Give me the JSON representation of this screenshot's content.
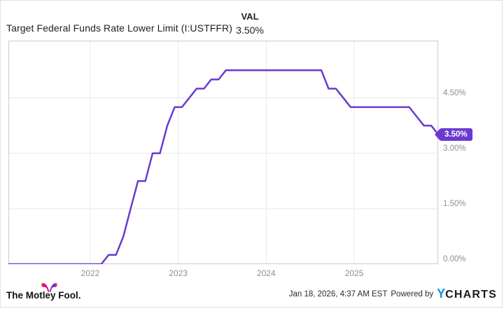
{
  "header": {
    "title": "Target Federal Funds Rate Lower Limit (I:USTFFR)",
    "val_label": "VAL",
    "val_value": "3.50%"
  },
  "footer": {
    "brand": "The Motley Fool.",
    "timestamp": "Jan 18, 2026, 4:37 AM EST",
    "powered_by": "Powered by",
    "ycharts_y": "Y",
    "ycharts_rest": "CHARTS"
  },
  "colors": {
    "line": "#6A3AD0",
    "grid": "#e8e8e8",
    "frame": "#cccccc",
    "tick_text": "#8f8f8f",
    "ycharts_blue": "#1590DB",
    "fool_pink": "#E6007E",
    "fool_purple": "#7C2BC9",
    "fool_gold": "#F7A11A"
  },
  "chart_data": {
    "type": "line",
    "title": "Target Federal Funds Rate Lower Limit (I:USTFFR)",
    "xlabel": "",
    "ylabel": "",
    "unit": "percent",
    "grid": true,
    "legend_position": "none",
    "x_start_month": "2021-01",
    "x_step": "monthly",
    "values": [
      0,
      0,
      0,
      0,
      0,
      0,
      0,
      0,
      0,
      0,
      0,
      0,
      0,
      0,
      0.25,
      0.25,
      0.75,
      1.5,
      2.25,
      2.25,
      3,
      3,
      3.75,
      4.25,
      4.25,
      4.5,
      4.75,
      4.75,
      5,
      5,
      5.25,
      5.25,
      5.25,
      5.25,
      5.25,
      5.25,
      5.25,
      5.25,
      5.25,
      5.25,
      5.25,
      5.25,
      5.25,
      5.25,
      4.75,
      4.75,
      4.5,
      4.25,
      4.25,
      4.25,
      4.25,
      4.25,
      4.25,
      4.25,
      4.25,
      4.25,
      4,
      3.75,
      3.75,
      3.5
    ],
    "x_ticks": [
      {
        "label": "2022",
        "year": 2022
      },
      {
        "label": "2023",
        "year": 2023
      },
      {
        "label": "2024",
        "year": 2024
      },
      {
        "label": "2025",
        "year": 2025
      }
    ],
    "y_ticks": [
      {
        "label": "0.00%",
        "value": 0
      },
      {
        "label": "1.50%",
        "value": 1.5
      },
      {
        "label": "3.00%",
        "value": 3
      },
      {
        "label": "4.50%",
        "value": 4.5
      }
    ],
    "x_domain_years": [
      2021.069,
      2025.954
    ],
    "y_domain": [
      0,
      6.05
    ],
    "last_value": 3.5,
    "last_value_label": "3.50%"
  }
}
